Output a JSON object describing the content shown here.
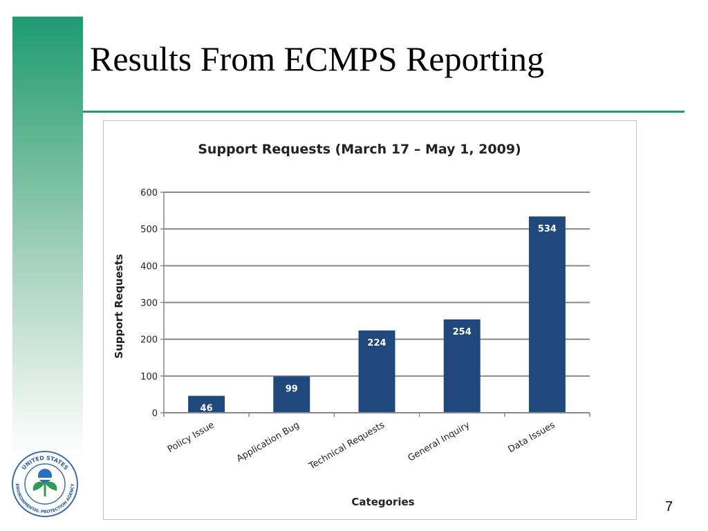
{
  "slide": {
    "title": "Results From ECMPS Reporting",
    "page_number": "7",
    "accent_color": "#1d9b73"
  },
  "logo": {
    "icon": "epa-seal-icon",
    "top_text": "UNITED STATES",
    "bottom_text": "ENVIRONMENTAL PROTECTION AGENCY"
  },
  "chart_data": {
    "type": "bar",
    "title": "Support Requests (March 17 – May 1, 2009)",
    "xlabel": "Categories",
    "ylabel": "Support Requests",
    "categories": [
      "Policy Issue",
      "Application Bug",
      "Technical Requests",
      "General Inquiry",
      "Data Issues"
    ],
    "values": [
      46,
      99,
      224,
      254,
      534
    ],
    "ylim": [
      0,
      600
    ],
    "yticks": [
      0,
      100,
      200,
      300,
      400,
      500,
      600
    ],
    "grid": true,
    "legend": "none",
    "bar_color": "#1f497d",
    "grid_color": "#888888"
  }
}
